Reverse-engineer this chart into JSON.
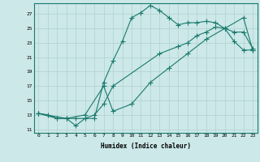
{
  "bg_color": "#cce8e8",
  "grid_color": "#b0d0d0",
  "line_color": "#1a7a6e",
  "xlabel": "Humidex (Indice chaleur)",
  "xlim": [
    -0.5,
    23.5
  ],
  "ylim": [
    10.5,
    28.5
  ],
  "xticks": [
    0,
    1,
    2,
    3,
    4,
    5,
    6,
    7,
    8,
    9,
    10,
    11,
    12,
    13,
    14,
    15,
    16,
    17,
    18,
    19,
    20,
    21,
    22,
    23
  ],
  "yticks": [
    11,
    13,
    15,
    17,
    19,
    21,
    23,
    25,
    27
  ],
  "line1_x": [
    0,
    1,
    2,
    3,
    4,
    5,
    6,
    7,
    8,
    9,
    10,
    11,
    12,
    13,
    14,
    15,
    16,
    17,
    18,
    19,
    20,
    21,
    22,
    23
  ],
  "line1_y": [
    13.2,
    13.0,
    12.5,
    12.5,
    11.5,
    12.5,
    12.5,
    17.5,
    20.5,
    23.2,
    26.5,
    27.2,
    28.2,
    27.5,
    26.5,
    25.5,
    25.8,
    25.8,
    26.0,
    25.8,
    25.0,
    23.2,
    22.0,
    22.0
  ],
  "line2_x": [
    0,
    2,
    3,
    4,
    5,
    6,
    7,
    8,
    13,
    15,
    16,
    17,
    18,
    19,
    20,
    21,
    22,
    23
  ],
  "line2_y": [
    13.2,
    12.5,
    12.5,
    12.5,
    12.5,
    13.0,
    14.5,
    17.0,
    21.5,
    22.5,
    23.0,
    24.0,
    24.5,
    25.2,
    25.0,
    24.5,
    24.5,
    22.2
  ],
  "line3_x": [
    0,
    3,
    5,
    7,
    8,
    10,
    12,
    14,
    16,
    18,
    20,
    22,
    23
  ],
  "line3_y": [
    13.2,
    12.5,
    13.0,
    17.0,
    13.5,
    14.5,
    17.5,
    19.5,
    21.5,
    23.5,
    25.0,
    26.5,
    22.0
  ]
}
